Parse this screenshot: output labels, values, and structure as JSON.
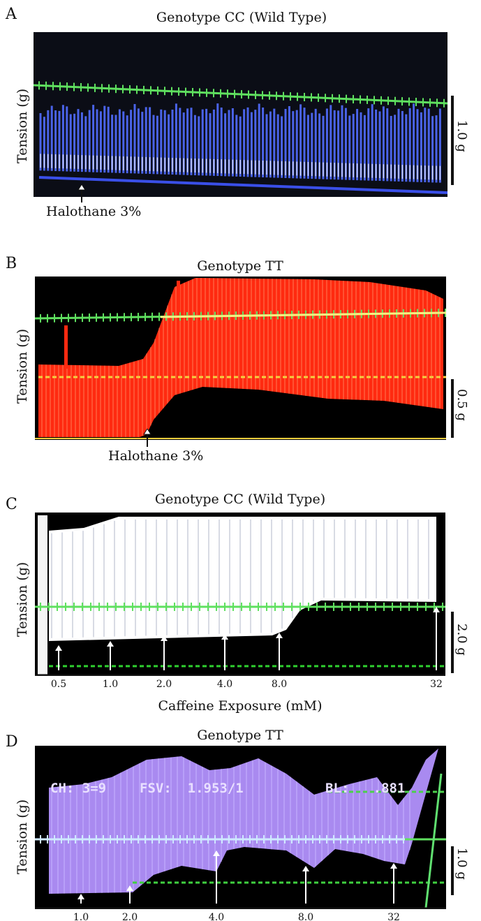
{
  "panels": [
    {
      "letter": "A",
      "title": "Genotype CC (Wild Type)",
      "ylabel": "Tension (g)",
      "scale": "1.0 g",
      "annotation": "Halothane 3%"
    },
    {
      "letter": "B",
      "title": "Genotype TT",
      "ylabel": "Tension (g)",
      "scale": "0.5 g",
      "annotation": "Halothane 3%"
    },
    {
      "letter": "C",
      "title": "Genotype CC (Wild Type)",
      "ylabel": "Tension (g)",
      "scale": "2.0 g",
      "xlabel": "Caffeine Exposure (mM)"
    },
    {
      "letter": "D",
      "title": "Genotype TT",
      "ylabel": "Tension (g)",
      "scale": "1.0 g",
      "overlay": {
        "ch": "CH: 3=9",
        "fsv": "FSV:  1.953/1",
        "bl": "BL:   .881"
      }
    }
  ],
  "chart_data": [
    {
      "type": "line",
      "panel": "A",
      "title": "Genotype CC (Wild Type)",
      "ylabel": "Tension (g)",
      "annotations": [
        "Halothane 3%"
      ],
      "scale_bar": "1.0 g",
      "trace_color": "#4a63e8",
      "reference_line_color": "#5fe05f"
    },
    {
      "type": "area",
      "panel": "B",
      "title": "Genotype TT",
      "ylabel": "Tension (g)",
      "annotations": [
        "Halothane 3%"
      ],
      "scale_bar": "0.5 g",
      "trace_color": "#ff2a10",
      "reference_line_color": "#5fe05f"
    },
    {
      "type": "area",
      "panel": "C",
      "title": "Genotype CC (Wild Type)",
      "ylabel": "Tension (g)",
      "xlabel": "Caffeine Exposure (mM)",
      "x": [
        "0.5",
        "1.0",
        "2.0",
        "4.0",
        "8.0",
        "32"
      ],
      "scale_bar": "2.0 g",
      "trace_color": "#ffffff",
      "reference_line_color": "#5fe05f"
    },
    {
      "type": "area",
      "panel": "D",
      "title": "Genotype TT",
      "ylabel": "Tension (g)",
      "x": [
        "1.0",
        "2.0",
        "4.0",
        "8.0",
        "32"
      ],
      "scale_bar": "1.0 g",
      "trace_color": "#a98af0",
      "reference_line_color": "#5fe05f"
    }
  ]
}
